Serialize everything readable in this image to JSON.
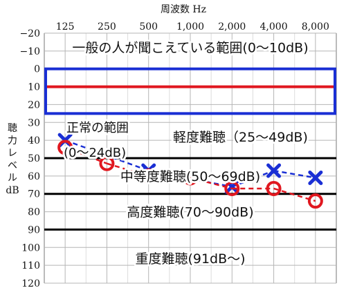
{
  "chart_data": {
    "type": "scatter",
    "title": "",
    "xlabel": "周波数 Hz",
    "ylabel": [
      "聴",
      "力",
      "レ",
      "ベ",
      "ル",
      "dB"
    ],
    "x_ticks": [
      "125",
      "250",
      "500",
      "1,000",
      "2,000",
      "4,000",
      "8,000"
    ],
    "y_ticks": [
      "−20",
      "−10",
      "0",
      "10",
      "20",
      "30",
      "40",
      "50",
      "60",
      "70",
      "80",
      "90",
      "100",
      "110",
      "120"
    ],
    "y_values": [
      -20,
      -10,
      0,
      10,
      20,
      30,
      40,
      50,
      60,
      70,
      80,
      90,
      100,
      110,
      120
    ],
    "ylim": [
      -20,
      120
    ],
    "y_inverted": true,
    "grid": true,
    "normal_range_box": [
      0,
      25
    ],
    "normal_range_line": 10,
    "band_dividers": [
      50,
      70,
      90
    ],
    "bands": [
      {
        "label": "一般の人が聞こえている範囲(0〜10dB)",
        "y": -12
      },
      {
        "label": "軽度難聴（25〜49dB)",
        "y": 38
      },
      {
        "label": "中等度難聴(50〜69dB)",
        "y": 60
      },
      {
        "label": "高度難聴(70〜90dB)",
        "y": 80
      },
      {
        "label": "重度難聴(91dB〜)",
        "y": 106
      }
    ],
    "normal_label": {
      "line1": "正常の範囲",
      "line2": "(0〜24dB)"
    },
    "series": [
      {
        "marker": "cross",
        "color": "#1a2fd4",
        "x": [
          0,
          2,
          4,
          5,
          6
        ],
        "y": [
          40,
          57,
          66,
          57,
          61
        ]
      },
      {
        "marker": "circle",
        "color": "#e0171f",
        "x": [
          0,
          1,
          2,
          3,
          4,
          5,
          6
        ],
        "y": [
          44,
          53,
          60,
          61,
          67,
          67,
          74
        ]
      }
    ],
    "colors": {
      "normal_box": "#1a2fd4",
      "normal_line": "#e0171f",
      "grid": "#b5b5b5",
      "divider": "#000000"
    }
  }
}
